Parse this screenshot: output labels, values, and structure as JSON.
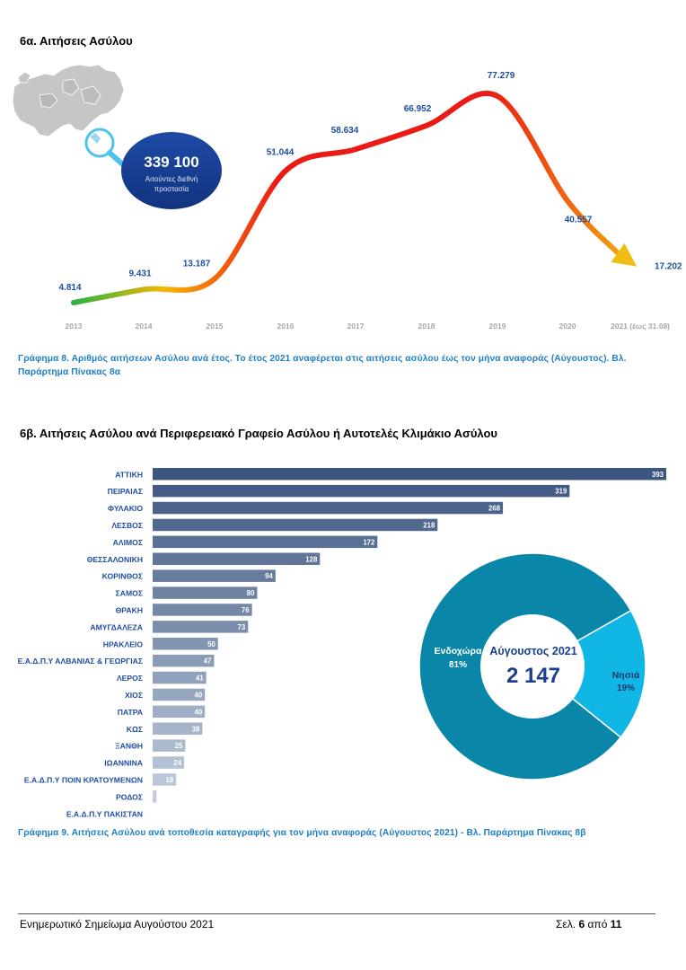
{
  "section1": {
    "title": "6α. Αιτήσεις Ασύλου"
  },
  "summary": {
    "total": "339 100",
    "label_line1": "Αιτούντες διεθνή",
    "label_line2": "προστασία"
  },
  "section2": {
    "title": "6β. Αιτήσεις Ασύλου ανά Περιφερειακό Γραφείο Ασύλου ή Αυτοτελές Κλιμάκιο Ασύλου"
  },
  "caption1": "Γράφημα 8. Αριθμός αιτήσεων Ασύλου ανά έτος. Το έτος 2021 αναφέρεται στις αιτήσεις ασύλου έως τον μήνα αναφοράς (Αύγουστος). Βλ. Παράρτημα Πίνακας 8α",
  "caption2": "Γράφημα 9. Αιτήσεις Ασύλου ανά τοποθεσία καταγραφής για τον μήνα αναφοράς (Αύγουστος 2021) - Βλ. Παράρτημα Πίνακας 8β",
  "footer": {
    "left": "Ενημερωτικό Σημείωμα Αυγούστου 2021",
    "page_prefix": "Σελ.",
    "page": "6",
    "page_mid": "από",
    "total_pages": "11"
  },
  "colors": {
    "navy": "#1b3f8f",
    "bar_dark": "#3d5680",
    "bar_light": "#c9d3e2",
    "donut_main": "#0a86a8",
    "donut_islands": "#10b6e4"
  },
  "chart_data": [
    {
      "type": "line",
      "x": [
        "2013",
        "2014",
        "2015",
        "2016",
        "2017",
        "2018",
        "2019",
        "2020",
        "2021 (έως 31.08)"
      ],
      "values": [
        4814,
        9431,
        13187,
        51044,
        58634,
        66952,
        77279,
        40557,
        17202
      ],
      "data_labels": [
        "4.814",
        "9.431",
        "13.187",
        "51.044",
        "58.634",
        "66.952",
        "77.279",
        "40.557",
        "17.202"
      ]
    },
    {
      "type": "bar",
      "orientation": "horizontal",
      "categories": [
        "ΑΤΤΙΚΗ",
        "ΠΕΙΡΑΙΑΣ",
        "ΦΥΛΑΚΙΟ",
        "ΛΕΣΒΟΣ",
        "ΑΛΙΜΟΣ",
        "ΘΕΣΣΑΛΟΝΙΚΗ",
        "ΚΟΡΙΝΘΟΣ",
        "ΣΑΜΟΣ",
        "ΘΡΑΚΗ",
        "ΑΜΥΓΔΑΛΕΖΑ",
        "ΗΡΑΚΛΕΙΟ",
        "Ε.Α.Δ.Π.Υ ΑΛΒΑΝΙΑΣ & ΓΕΩΡΓΙΑΣ",
        "ΛΕΡΟΣ",
        "ΧΙΟΣ",
        "ΠΑΤΡΑ",
        "ΚΩΣ",
        "ΞΑΝΘΗ",
        "ΙΩΑΝΝΙΝΑ",
        "Ε.Α.Δ.Π.Υ ΠΟΙΝ ΚΡΑΤΟΥΜΕΝΩΝ",
        "ΡΟΔΟΣ",
        "Ε.Α.Δ.Π.Υ ΠΑΚΙΣΤΑΝ"
      ],
      "values": [
        393,
        319,
        268,
        218,
        172,
        128,
        94,
        80,
        76,
        73,
        50,
        47,
        41,
        40,
        40,
        38,
        25,
        24,
        18,
        3,
        0
      ],
      "data_labels": [
        "393",
        "319",
        "268",
        "218",
        "172",
        "128",
        "94",
        "80",
        "76",
        "73",
        "50",
        "47",
        "41",
        "40",
        "40",
        "38",
        "25",
        "24",
        "18",
        "",
        ""
      ]
    },
    {
      "type": "pie",
      "title": "Αύγουστος 2021",
      "total": "2 147",
      "slices": [
        {
          "name": "Ενδοχώρα",
          "value": 81,
          "label": "81%"
        },
        {
          "name": "Νησιά",
          "value": 19,
          "label": "19%"
        }
      ]
    }
  ]
}
